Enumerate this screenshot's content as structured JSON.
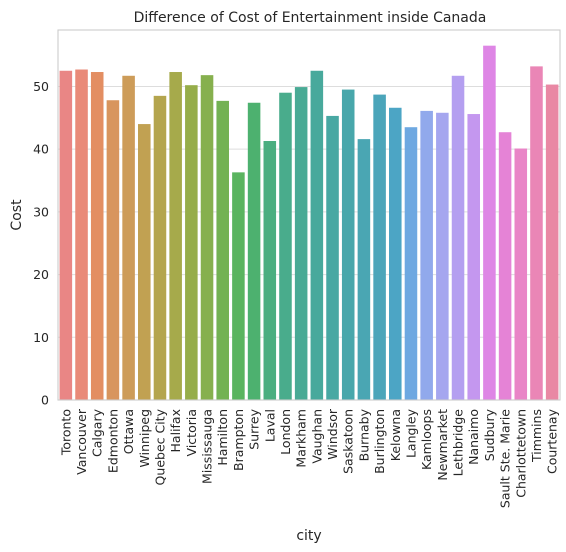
{
  "chart_data": {
    "type": "bar",
    "title": "Difference of Cost of Entertainment inside Canada",
    "xlabel": "city",
    "ylabel": "Cost",
    "ylim": [
      0,
      59
    ],
    "yticks": [
      0,
      10,
      20,
      30,
      40,
      50
    ],
    "grid": "horizontal",
    "legend": "none",
    "categories": [
      "Toronto",
      "Vancouver",
      "Calgary",
      "Edmonton",
      "Ottawa",
      "Winnipeg",
      "Quebec City",
      "Halifax",
      "Victoria",
      "Mississauga",
      "Hamilton",
      "Brampton",
      "Surrey",
      "Laval",
      "London",
      "Markham",
      "Vaughan",
      "Windsor",
      "Saskatoon",
      "Burnaby",
      "Burlington",
      "Kelowna",
      "Langley",
      "Kamloops",
      "Newmarket",
      "Lethbridge",
      "Nanaimo",
      "Sudbury",
      "Sault Ste. Marie",
      "Charlottetown",
      "Timmins",
      "Courtenay"
    ],
    "values": [
      52.5,
      52.7,
      52.3,
      47.8,
      51.7,
      44.0,
      48.5,
      52.3,
      50.2,
      51.8,
      47.7,
      36.3,
      47.4,
      41.3,
      49.0,
      49.9,
      52.5,
      45.3,
      49.5,
      41.6,
      48.7,
      46.6,
      43.5,
      46.1,
      45.8,
      51.7,
      45.6,
      56.5,
      42.7,
      40.1,
      53.2,
      50.3
    ],
    "colors": [
      "#e98685",
      "#e98a79",
      "#e38e62",
      "#d8955e",
      "#cd9c59",
      "#c1a152",
      "#b4a54e",
      "#a6aa4b",
      "#96ad4a",
      "#86b04e",
      "#73b253",
      "#5ab45f",
      "#4db16f",
      "#4bae80",
      "#49ac8c",
      "#49aa95",
      "#48a99c",
      "#48a8a3",
      "#48a7ab",
      "#4aa6b3",
      "#4ba5ba",
      "#4ca5c5",
      "#6ea8e1",
      "#91a9ec",
      "#a5a6ef",
      "#b49ff0",
      "#c497ef",
      "#de86e5",
      "#e583d6",
      "#e985c7",
      "#ea86b6",
      "#e988a4"
    ]
  }
}
